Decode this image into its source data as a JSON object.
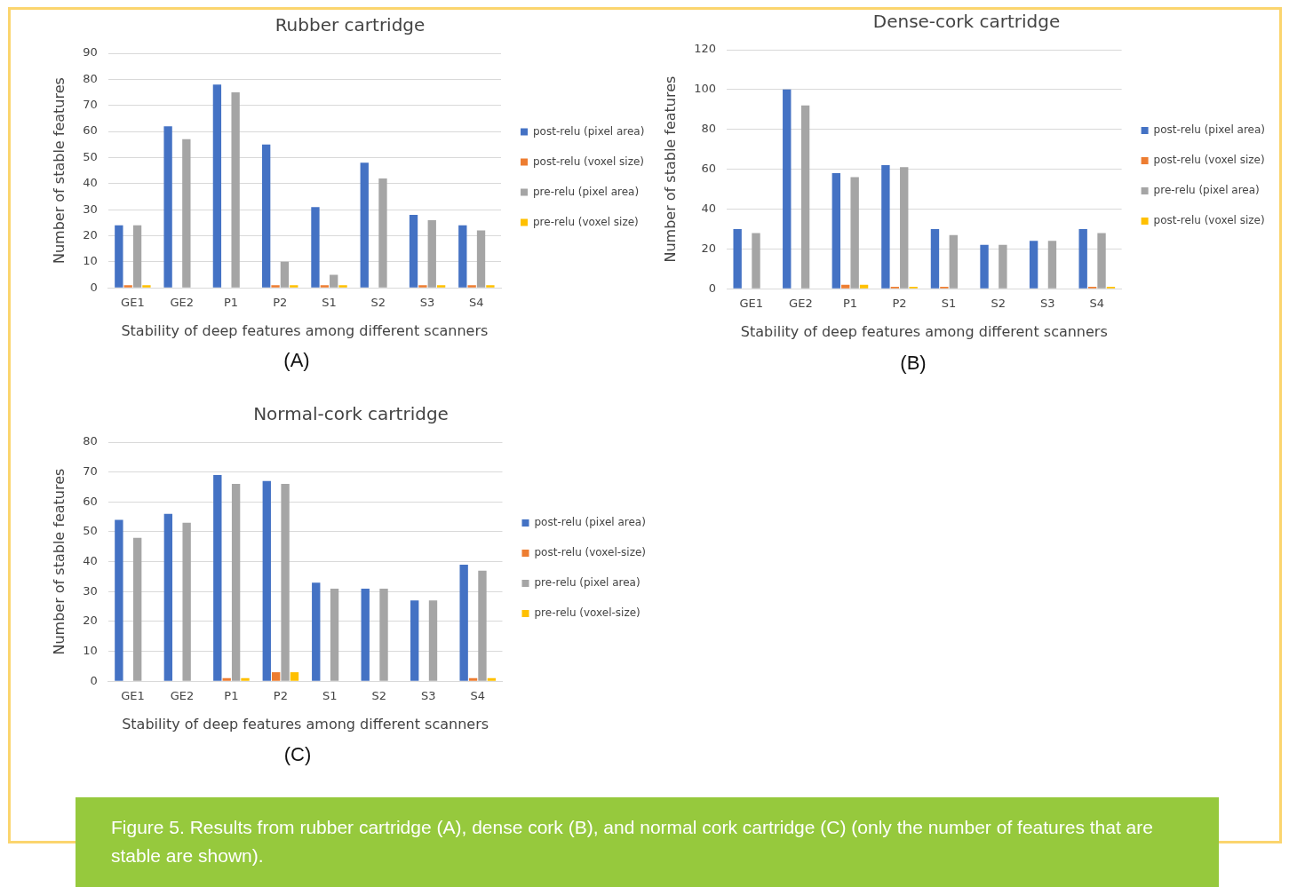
{
  "chart_data": [
    {
      "type": "bar",
      "title": "Rubber cartridge",
      "xlabel": "Stability of deep features among different scanners",
      "ylabel": "Number of stable features",
      "categories": [
        "GE1",
        "GE2",
        "P1",
        "P2",
        "S1",
        "S2",
        "S3",
        "S4"
      ],
      "series": [
        {
          "name": "post-relu (pixel area)",
          "color": "#4472c4",
          "values": [
            24,
            62,
            78,
            55,
            31,
            48,
            28,
            24
          ]
        },
        {
          "name": "post-relu (voxel size)",
          "color": "#ed7d31",
          "values": [
            1,
            0,
            0,
            1,
            1,
            0,
            1,
            1
          ]
        },
        {
          "name": "pre-relu (pixel area)",
          "color": "#a5a5a5",
          "values": [
            24,
            57,
            75,
            10,
            5,
            42,
            26,
            22
          ]
        },
        {
          "name": "pre-relu (voxel size)",
          "color": "#ffc000",
          "values": [
            1,
            0,
            0,
            1,
            1,
            0,
            1,
            1
          ]
        }
      ],
      "ylim": [
        0,
        90
      ],
      "yticks": [
        0,
        10,
        20,
        30,
        40,
        50,
        60,
        70,
        80,
        90
      ],
      "grid": "y",
      "legend": "right",
      "annotations": [
        "(A)"
      ]
    },
    {
      "type": "bar",
      "title": "Dense-cork cartridge",
      "xlabel": "Stability of deep features among different scanners",
      "ylabel": "Number of stable features",
      "categories": [
        "GE1",
        "GE2",
        "P1",
        "P2",
        "S1",
        "S2",
        "S3",
        "S4"
      ],
      "series": [
        {
          "name": "post-relu (pixel area)",
          "color": "#4472c4",
          "values": [
            30,
            100,
            58,
            62,
            30,
            22,
            24,
            30
          ]
        },
        {
          "name": "post-relu (voxel size)",
          "color": "#ed7d31",
          "values": [
            0,
            0,
            2,
            1,
            1,
            0,
            0,
            1
          ]
        },
        {
          "name": "pre-relu (pixel area)",
          "color": "#a5a5a5",
          "values": [
            28,
            92,
            56,
            61,
            27,
            22,
            24,
            28
          ]
        },
        {
          "name": "post-relu (voxel size)",
          "color": "#ffc000",
          "values": [
            0,
            0,
            2,
            1,
            0,
            0,
            0,
            1
          ]
        }
      ],
      "ylim": [
        0,
        120
      ],
      "yticks": [
        0,
        20,
        40,
        60,
        80,
        100,
        120
      ],
      "grid": "y",
      "legend": "right",
      "annotations": [
        "(B)"
      ]
    },
    {
      "type": "bar",
      "title": "Normal-cork cartridge",
      "xlabel": "Stability of deep features among different scanners",
      "ylabel": "Number of stable features",
      "categories": [
        "GE1",
        "GE2",
        "P1",
        "P2",
        "S1",
        "S2",
        "S3",
        "S4"
      ],
      "series": [
        {
          "name": "post-relu (pixel area)",
          "color": "#4472c4",
          "values": [
            54,
            56,
            69,
            67,
            33,
            31,
            27,
            39
          ]
        },
        {
          "name": "post-relu (voxel-size)",
          "color": "#ed7d31",
          "values": [
            0,
            0,
            1,
            3,
            0,
            0,
            0,
            1
          ]
        },
        {
          "name": "pre-relu (pixel area)",
          "color": "#a5a5a5",
          "values": [
            48,
            53,
            66,
            66,
            31,
            31,
            27,
            37
          ]
        },
        {
          "name": "pre-relu (voxel-size)",
          "color": "#ffc000",
          "values": [
            0,
            0,
            1,
            3,
            0,
            0,
            0,
            1
          ]
        }
      ],
      "ylim": [
        0,
        80
      ],
      "yticks": [
        0,
        10,
        20,
        30,
        40,
        50,
        60,
        70,
        80
      ],
      "grid": "y",
      "legend": "right",
      "annotations": [
        "(C)",
        "Figure 5. Results from rubber cartridge (A), dense cork (B), and normal cork cartridge (C) (only the number of features that are stable are shown)."
      ]
    }
  ]
}
